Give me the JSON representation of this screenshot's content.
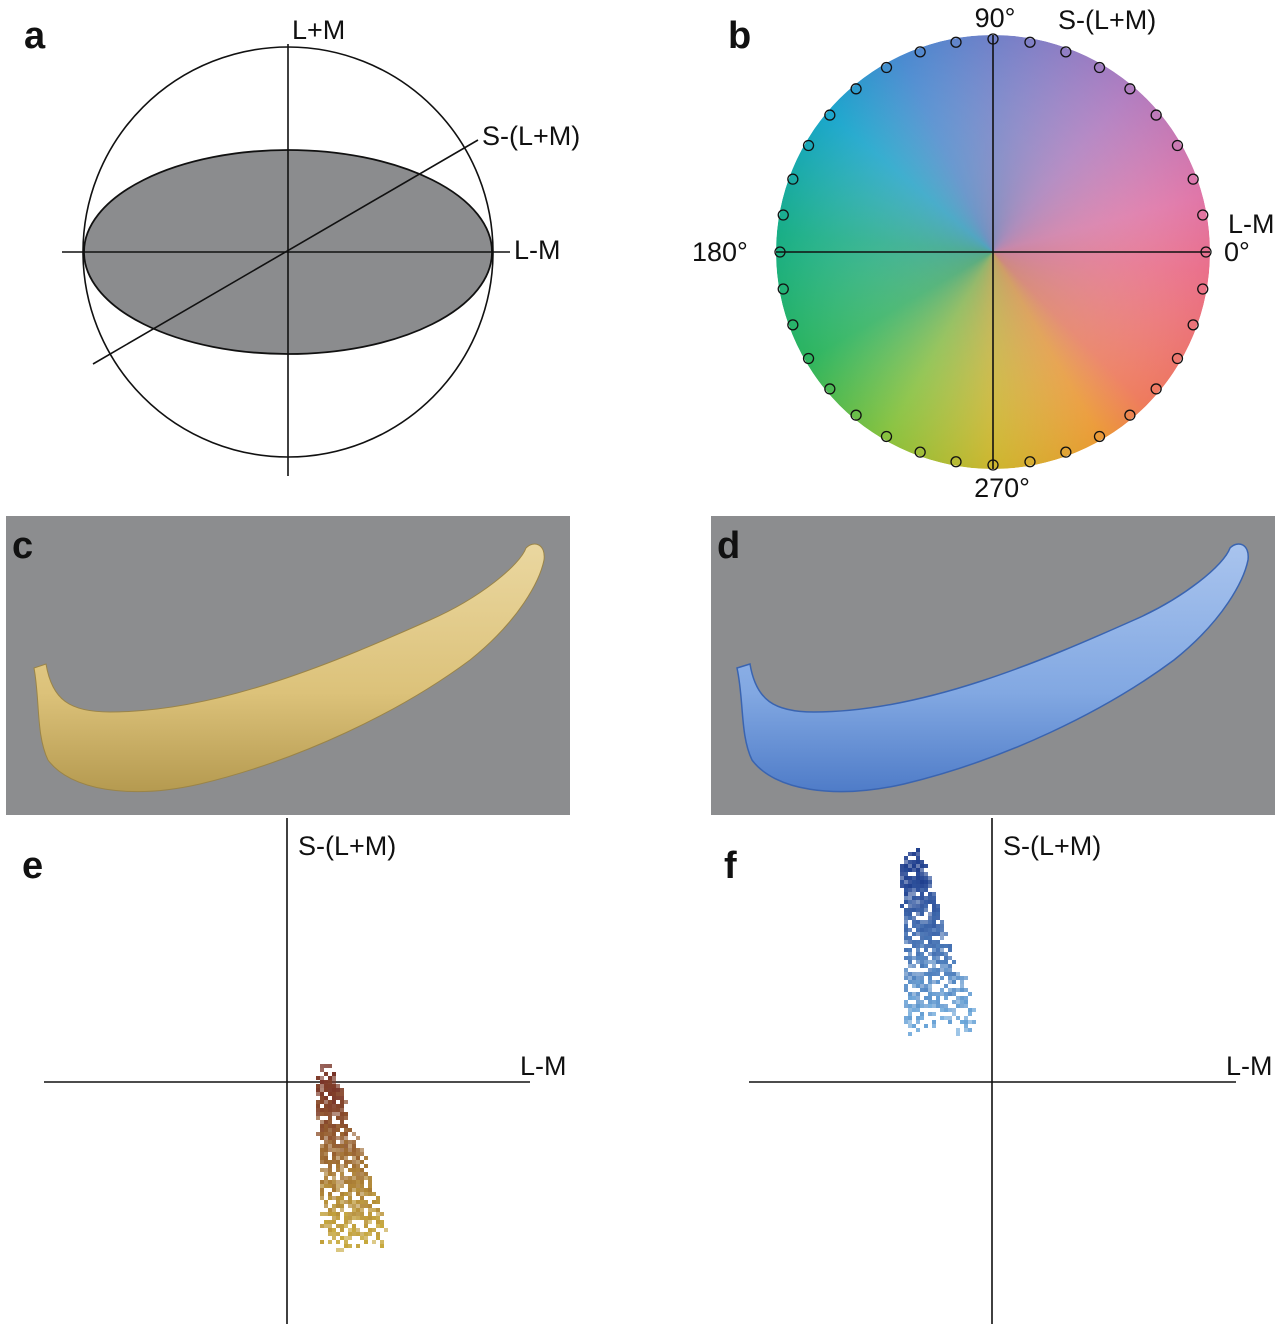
{
  "panels": [
    {
      "label": "a",
      "axes": [
        "L+M",
        "S-(L+M)",
        "L-M"
      ]
    },
    {
      "label": "b",
      "axes": [
        "S-(L+M)",
        "L-M"
      ],
      "angles": [
        "90°",
        "180°",
        "0°",
        "270°"
      ]
    },
    {
      "label": "c"
    },
    {
      "label": "d"
    },
    {
      "label": "e",
      "axes": [
        "S-(L+M)",
        "L-M"
      ]
    },
    {
      "label": "f",
      "axes": [
        "S-(L+M)",
        "L-M"
      ]
    }
  ]
}
